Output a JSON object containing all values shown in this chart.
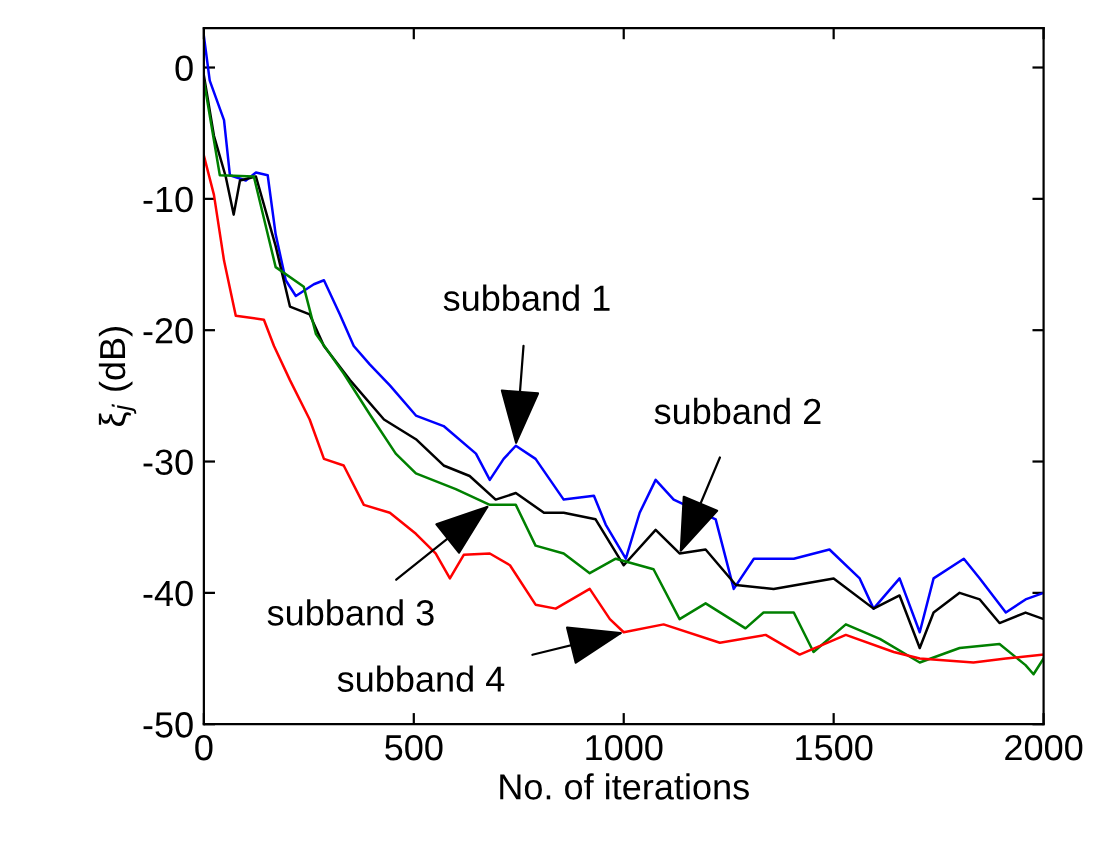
{
  "chart_data": {
    "type": "line",
    "xlabel": "No. of iterations",
    "ylabel": "ξ$_{j}$ (dB)",
    "xlim": [
      0,
      2000
    ],
    "xticks": [
      0,
      500,
      1000,
      1500,
      2000
    ],
    "ylim": [
      -50,
      3
    ],
    "yticks": [
      -50,
      -40,
      -30,
      -20,
      -10,
      0
    ],
    "grid": false,
    "legend": false,
    "marker": "none",
    "line_style": "solid",
    "series": [
      {
        "color": "#0000ff",
        "x": [
          0,
          14,
          48,
          62,
          100,
          124,
          152,
          171,
          195,
          219,
          262,
          286,
          324,
          357,
          395,
          443,
          505,
          571,
          648,
          681,
          714,
          743,
          790,
          857,
          929,
          957,
          1005,
          1038,
          1076,
          1119,
          1219,
          1262,
          1310,
          1405,
          1490,
          1562,
          1595,
          1657,
          1705,
          1738,
          1810,
          1848,
          1910,
          1957,
          2000
        ],
        "values": [
          2.4,
          -1,
          -4,
          -8.2,
          -8.6,
          -8,
          -8.2,
          -12.7,
          -16.2,
          -17.4,
          -16.5,
          -16.2,
          -18.8,
          -21.2,
          -22.6,
          -24.2,
          -26.5,
          -27.3,
          -29.4,
          -31.4,
          -29.8,
          -28.8,
          -29.8,
          -32.9,
          -32.6,
          -34.8,
          -37.4,
          -33.9,
          -31.4,
          -32.9,
          -34.4,
          -39.7,
          -37.4,
          -37.4,
          -36.7,
          -38.9,
          -41.2,
          -38.9,
          -43,
          -38.9,
          -37.4,
          -38.9,
          -41.5,
          -40.5,
          -40
        ]
      },
      {
        "color": "#000000",
        "x": [
          0,
          24,
          52,
          71,
          86,
          124,
          171,
          205,
          252,
          286,
          348,
          429,
          505,
          571,
          633,
          695,
          743,
          810,
          857,
          933,
          1000,
          1076,
          1133,
          1195,
          1267,
          1357,
          1500,
          1595,
          1657,
          1705,
          1738,
          1800,
          1848,
          1895,
          1957,
          2000
        ],
        "values": [
          -0.6,
          -5.2,
          -8.3,
          -11.2,
          -8.6,
          -8.3,
          -13.6,
          -18.2,
          -18.8,
          -21.2,
          -23.8,
          -26.8,
          -28.3,
          -30.3,
          -31.1,
          -32.9,
          -32.4,
          -33.9,
          -33.9,
          -34.4,
          -37.9,
          -35.2,
          -37,
          -36.7,
          -39.4,
          -39.7,
          -38.9,
          -41.2,
          -40.2,
          -44.2,
          -41.5,
          -40,
          -40.5,
          -42.3,
          -41.5,
          -42
        ]
      },
      {
        "color": "#008000",
        "x": [
          0,
          38,
          119,
          171,
          238,
          267,
          333,
          395,
          457,
          505,
          600,
          681,
          743,
          790,
          857,
          919,
          981,
          1071,
          1133,
          1195,
          1290,
          1333,
          1405,
          1452,
          1529,
          1610,
          1705,
          1800,
          1895,
          1957,
          1976,
          2000
        ],
        "values": [
          -1,
          -8.2,
          -8.3,
          -15.2,
          -16.7,
          -20.3,
          -23.3,
          -26.4,
          -29.4,
          -30.9,
          -32.1,
          -33.3,
          -33.3,
          -36.4,
          -37,
          -38.5,
          -37.4,
          -38.2,
          -42,
          -40.8,
          -42.7,
          -41.5,
          -41.5,
          -44.5,
          -42.4,
          -43.5,
          -45.3,
          -44.2,
          -43.9,
          -45.5,
          -46.2,
          -45
        ]
      },
      {
        "color": "#ff0000",
        "x": [
          0,
          24,
          48,
          76,
          143,
          167,
          205,
          252,
          286,
          333,
          381,
          443,
          505,
          552,
          586,
          619,
          681,
          729,
          790,
          838,
          919,
          967,
          1000,
          1095,
          1229,
          1338,
          1419,
          1529,
          1643,
          1705,
          1833,
          1910,
          2000
        ],
        "values": [
          -6.7,
          -9.7,
          -14.7,
          -18.9,
          -19.2,
          -21.2,
          -23.8,
          -26.8,
          -29.8,
          -30.3,
          -33.3,
          -33.9,
          -35.5,
          -37,
          -38.9,
          -37.1,
          -37,
          -37.9,
          -40.9,
          -41.2,
          -39.7,
          -42,
          -43,
          -42.4,
          -43.8,
          -43.2,
          -44.7,
          -43.2,
          -44.5,
          -45,
          -45.3,
          -45,
          -44.7
        ]
      }
    ],
    "annotations": [
      {
        "text": "subband 1",
        "x": 743,
        "y": -28.8
      },
      {
        "text": "subband 2",
        "x": 1133,
        "y": -37
      },
      {
        "text": "subband 3",
        "x": 681,
        "y": -33.3
      },
      {
        "text": "subband 4",
        "x": 1000,
        "y": -43
      }
    ]
  }
}
